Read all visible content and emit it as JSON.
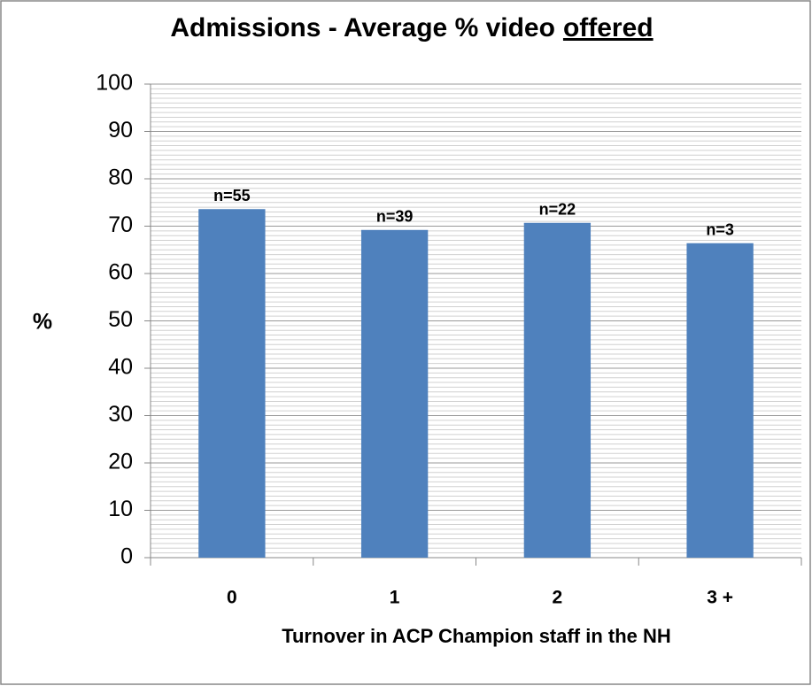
{
  "chart_data": {
    "type": "bar",
    "title": "Admissions - Average % video",
    "title_underlined": "offered",
    "y_label": "%",
    "x_label": "Turnover in ACP Champion staff in the NH",
    "categories": [
      "0",
      "1",
      "2",
      "3 +"
    ],
    "values": [
      73.6,
      69.2,
      70.7,
      66.4
    ],
    "annotations": [
      "n=55",
      "n=39",
      "n=22",
      "n=3"
    ],
    "color": "#4f81bd",
    "ylim": [
      0,
      100
    ],
    "yticks": [
      0,
      10,
      20,
      30,
      40,
      50,
      60,
      70,
      80,
      90,
      100
    ],
    "minor_grid_step": 1,
    "grid": true
  }
}
